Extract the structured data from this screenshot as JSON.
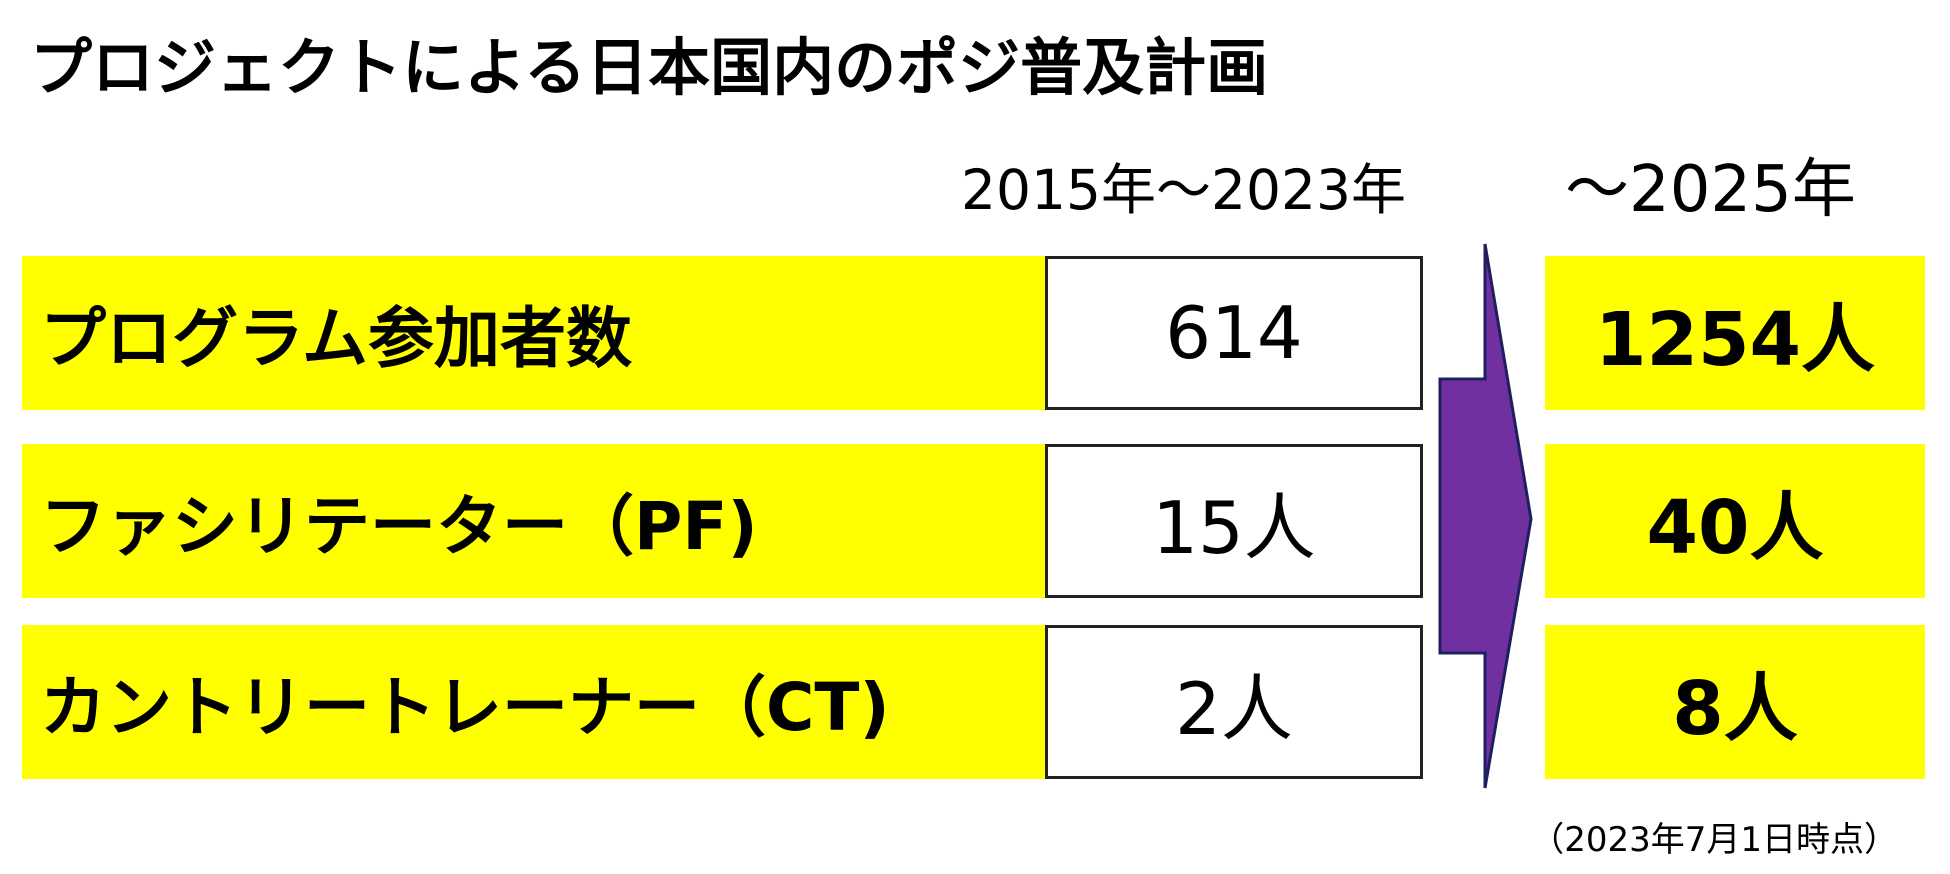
{
  "title": "プロジェクトによる日本国内のポジ普及計画",
  "columns": {
    "current": "2015年～2023年",
    "target": "～2025年"
  },
  "rows": [
    {
      "label": "プログラム参加者数",
      "current": "614",
      "target": "1254人"
    },
    {
      "label": "ファシリテーター（PF)",
      "current": "15人",
      "target": "40人"
    },
    {
      "label": "カントリートレーナー（CT)",
      "current": "2人",
      "target": "8人"
    }
  ],
  "note": "（2023年7月1日時点）"
}
